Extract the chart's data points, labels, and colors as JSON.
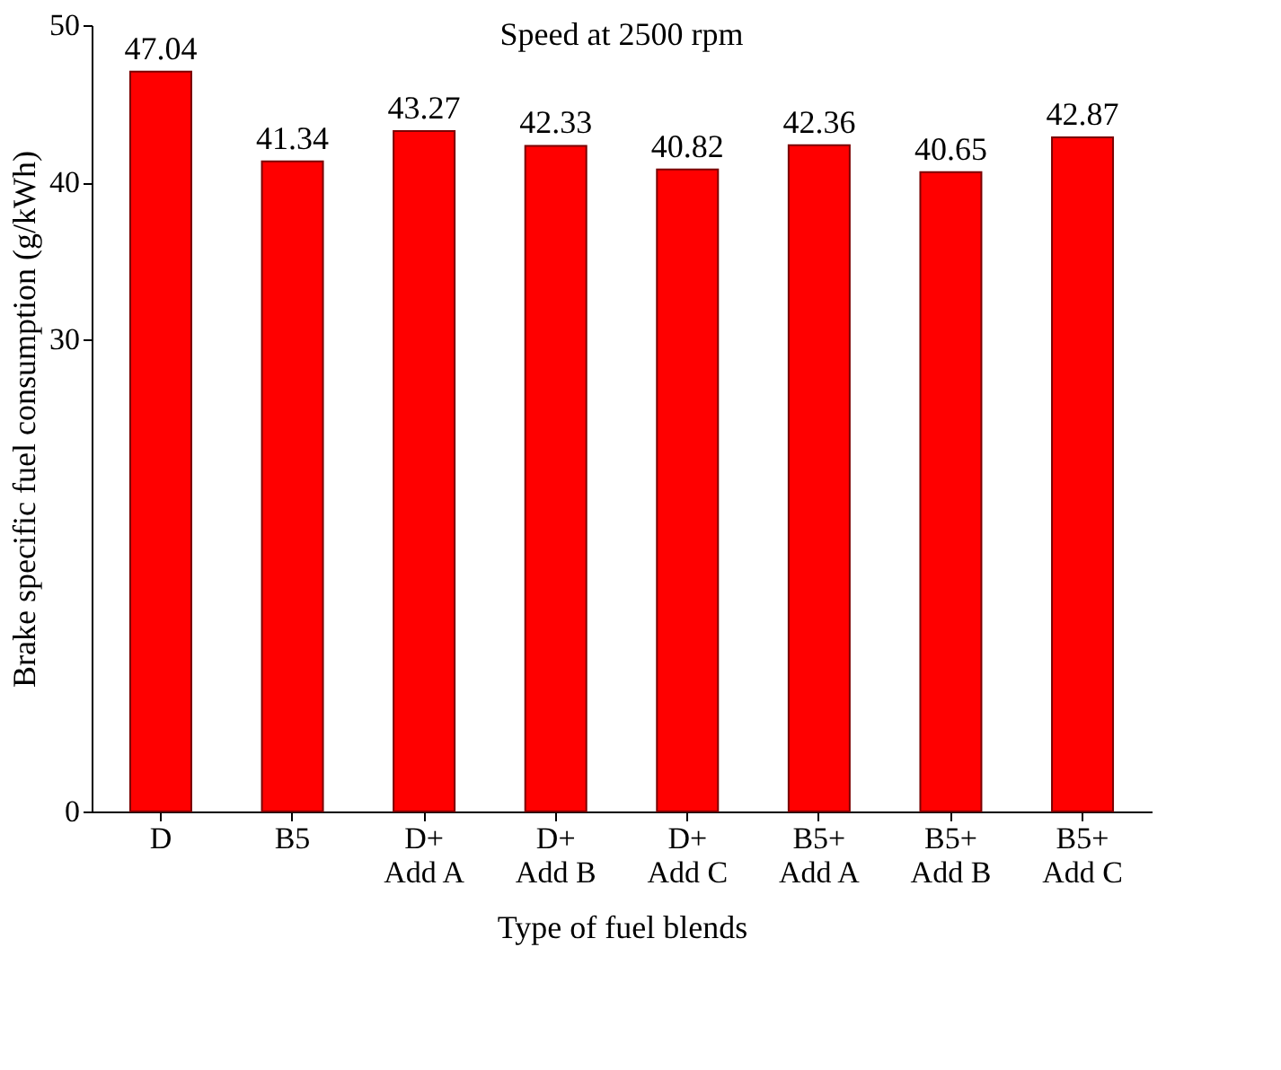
{
  "chart_data": {
    "type": "bar",
    "title": "Speed at 2500 rpm",
    "xlabel": "Type of fuel blends",
    "ylabel": "Brake specific fuel consumption (g/kWh)",
    "categories": [
      "D",
      "B5",
      "D+\nAdd A",
      "D+\nAdd B",
      "D+\nAdd C",
      "B5+\nAdd A",
      "B5+\nAdd B",
      "B5+\nAdd C"
    ],
    "values": [
      47.04,
      41.34,
      43.27,
      42.33,
      40.82,
      42.36,
      40.65,
      42.87
    ],
    "color": "#ff0000",
    "ylim": [
      0,
      50
    ],
    "yticks": [
      0,
      30,
      40,
      50
    ],
    "data_labels": true,
    "grid": false
  }
}
